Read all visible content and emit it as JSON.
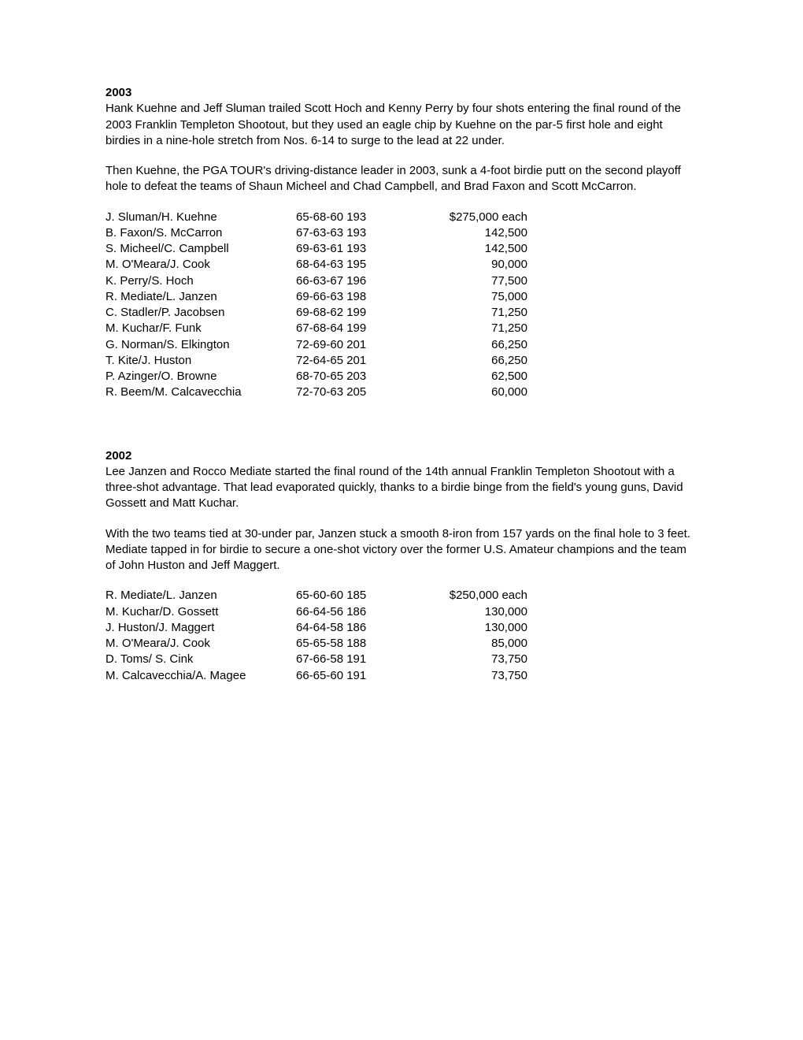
{
  "sections": [
    {
      "year": "2003",
      "paragraphs": [
        "Hank Kuehne and Jeff Sluman trailed Scott Hoch and Kenny Perry by four shots entering the final round of the 2003 Franklin Templeton Shootout, but they used an eagle chip by Kuehne on the par-5 first hole and eight birdies in a nine-hole stretch from Nos. 6-14 to surge to the lead at 22 under.",
        "Then Kuehne, the PGA TOUR's driving-distance leader in 2003, sunk a 4-foot birdie putt on the second playoff hole to defeat the teams of Shaun Micheel and Chad Campbell, and Brad Faxon and Scott McCarron."
      ],
      "results": [
        {
          "team": "J. Sluman/H. Kuehne",
          "scores": "65-68-60 193",
          "prize": "$275,000 each"
        },
        {
          "team": "B. Faxon/S. McCarron",
          "scores": "67-63-63 193",
          "prize": "142,500"
        },
        {
          "team": "S. Micheel/C. Campbell",
          "scores": "69-63-61 193",
          "prize": "142,500"
        },
        {
          "team": "M. O'Meara/J. Cook",
          "scores": "68-64-63 195",
          "prize": "90,000"
        },
        {
          "team": "K. Perry/S. Hoch",
          "scores": "66-63-67 196",
          "prize": "77,500"
        },
        {
          "team": "R. Mediate/L. Janzen",
          "scores": "69-66-63 198",
          "prize": "75,000"
        },
        {
          "team": "C. Stadler/P. Jacobsen",
          "scores": "69-68-62 199",
          "prize": "71,250"
        },
        {
          "team": "M. Kuchar/F. Funk",
          "scores": "67-68-64 199",
          "prize": "71,250"
        },
        {
          "team": "G. Norman/S. Elkington",
          "scores": "72-69-60 201",
          "prize": "66,250"
        },
        {
          "team": "T. Kite/J. Huston",
          "scores": "72-64-65 201",
          "prize": "66,250"
        },
        {
          "team": "P. Azinger/O. Browne",
          "scores": "68-70-65 203",
          "prize": "62,500"
        },
        {
          "team": "R. Beem/M. Calcavecchia",
          "scores": "72-70-63 205",
          "prize": "60,000"
        }
      ]
    },
    {
      "year": "2002",
      "paragraphs": [
        "Lee Janzen and Rocco Mediate started the final round of the 14th annual Franklin Templeton Shootout with a three-shot advantage. That lead evaporated quickly, thanks to a birdie binge from the field's young guns, David Gossett and Matt Kuchar.",
        "With the two teams tied at 30-under par, Janzen stuck a smooth 8-iron from 157 yards on the final hole to 3 feet. Mediate tapped in for birdie to secure a one-shot victory over the former U.S. Amateur champions and the team of John Huston and Jeff Maggert."
      ],
      "results": [
        {
          "team": "R. Mediate/L. Janzen",
          "scores": "65-60-60 185",
          "prize": "$250,000 each"
        },
        {
          "team": "M. Kuchar/D. Gossett",
          "scores": "66-64-56 186",
          "prize": "130,000"
        },
        {
          "team": "J. Huston/J. Maggert",
          "scores": "64-64-58 186",
          "prize": "130,000"
        },
        {
          "team": "M. O'Meara/J. Cook",
          "scores": "65-65-58 188",
          "prize": "85,000"
        },
        {
          "team": "D. Toms/ S. Cink",
          "scores": "67-66-58 191",
          "prize": "73,750"
        },
        {
          "team": "M. Calcavecchia/A. Magee",
          "scores": "66-65-60 191",
          "prize": "73,750"
        }
      ]
    }
  ]
}
